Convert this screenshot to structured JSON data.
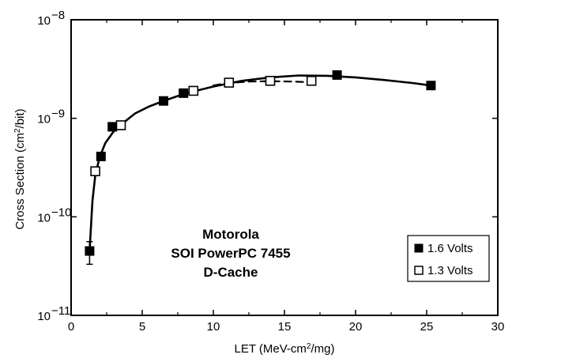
{
  "chart_data": {
    "type": "scatter",
    "title": "",
    "xlabel": "LET (MeV-cm2/mg)",
    "ylabel": "Cross Section (cm2/bit)",
    "xlim": [
      0,
      30
    ],
    "ylim": [
      1e-11,
      1e-08
    ],
    "yscale": "log",
    "x_ticks": [
      0,
      5,
      10,
      15,
      20,
      25,
      30
    ],
    "y_ticks": [
      {
        "value": 1e-11,
        "base": "10",
        "exp": "−11"
      },
      {
        "value": 1e-10,
        "base": "10",
        "exp": "−10"
      },
      {
        "value": 1e-09,
        "base": "10",
        "exp": "−9"
      },
      {
        "value": 1e-08,
        "base": "10",
        "exp": "−8"
      }
    ],
    "annotation": [
      "Motorola",
      "SOI PowerPC 7455",
      "D-Cache"
    ],
    "legend_position": "bottom-right",
    "series": [
      {
        "name": "1.6 Volts",
        "marker": "filled-square",
        "x": [
          1.3,
          2.1,
          2.9,
          6.5,
          7.9,
          18.7,
          25.3
        ],
        "y": [
          4.5e-11,
          4.1e-10,
          8.2e-10,
          1.5e-09,
          1.8e-09,
          2.75e-09,
          2.15e-09
        ],
        "error_bars": [
          {
            "x": 1.3,
            "low": 3.3e-11,
            "high": 5.6e-11
          }
        ]
      },
      {
        "name": "1.3 Volts",
        "marker": "open-square",
        "x": [
          1.7,
          3.5,
          8.6,
          11.1,
          14.0,
          16.9
        ],
        "y": [
          2.9e-10,
          8.5e-10,
          1.9e-09,
          2.3e-09,
          2.4e-09,
          2.4e-09
        ]
      }
    ],
    "fit_curves": [
      {
        "style": "solid",
        "x": [
          1.3,
          1.5,
          1.7,
          2.0,
          2.4,
          3.0,
          3.5,
          4.5,
          5.5,
          6.5,
          8.0,
          10.0,
          12.0,
          14.0,
          16.0,
          18.0,
          20.0,
          22.0,
          24.0,
          25.3
        ],
        "y": [
          4.5e-11,
          1.45e-10,
          2.65e-10,
          4e-10,
          5.6e-10,
          7.4e-10,
          8.6e-10,
          1.12e-09,
          1.32e-09,
          1.5e-09,
          1.78e-09,
          2.1e-09,
          2.4e-09,
          2.6e-09,
          2.72e-09,
          2.7e-09,
          2.6e-09,
          2.45e-09,
          2.28e-09,
          2.15e-09
        ]
      },
      {
        "style": "dashed",
        "x": [
          10.0,
          11.0,
          12.5,
          14.0,
          15.5,
          17.0
        ],
        "y": [
          2.15e-09,
          2.28e-09,
          2.36e-09,
          2.38e-09,
          2.36e-09,
          2.32e-09
        ]
      }
    ]
  }
}
